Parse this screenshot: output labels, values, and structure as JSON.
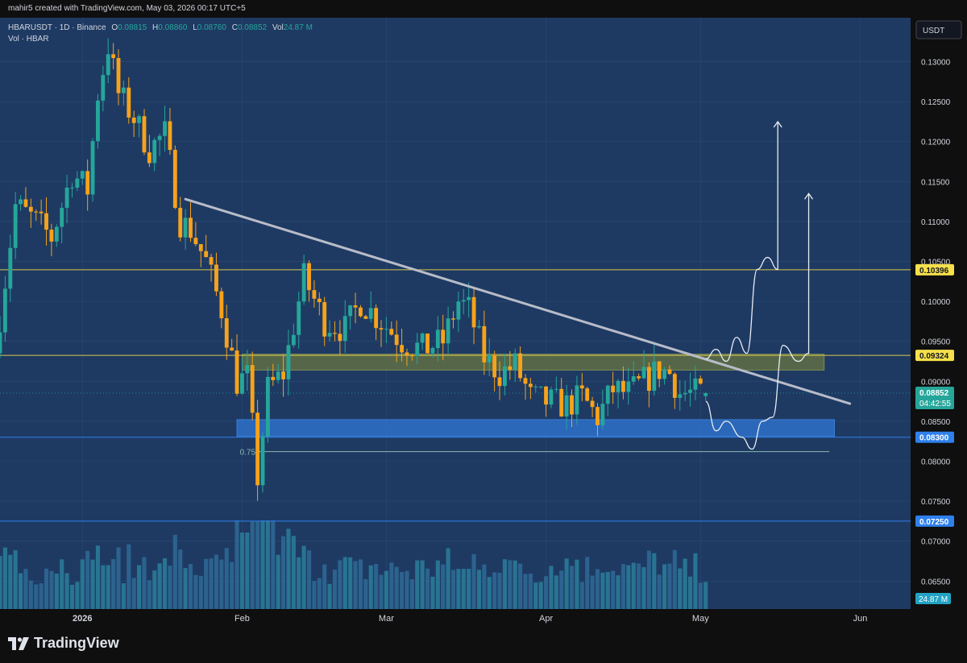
{
  "header": {
    "author_line": "mahir5 created with TradingView.com, May 03, 2026 00:17 UTC+5"
  },
  "legend": {
    "symbol": "HBARUSDT · 1D · Binance",
    "o_label": "O",
    "o_value": "0.08815",
    "h_label": "H",
    "h_value": "0.08860",
    "l_label": "L",
    "l_value": "0.08760",
    "c_label": "C",
    "c_value": "0.08852",
    "vol_label": "Vol",
    "vol_value": "24.87 M",
    "volume_title": "Vol · HBAR"
  },
  "currency_button": "USDT",
  "footer": {
    "brand": "TradingView"
  },
  "colors": {
    "background": "#1e3a63",
    "up": "#26a69a",
    "down": "#f7a21b",
    "axis_bg": "#0f0f0f",
    "yellow_line": "#d9c74a",
    "blue_line": "#2f80ed",
    "trendline": "#b8bcc8",
    "supply_zone": "#5f6f44",
    "demand_zone": "#2d6ec4"
  },
  "chart_data": {
    "type": "candlestick",
    "interval": "1D",
    "x_range": [
      "2025-12-16",
      "2026-06-10"
    ],
    "y_range": [
      0.0615,
      0.1355
    ],
    "x_ticks": [
      {
        "date": "2026-01-01",
        "label": "2026"
      },
      {
        "date": "2026-02-01",
        "label": "Feb"
      },
      {
        "date": "2026-03-01",
        "label": "Mar"
      },
      {
        "date": "2026-04-01",
        "label": "Apr"
      },
      {
        "date": "2026-05-01",
        "label": "May"
      },
      {
        "date": "2026-06-01",
        "label": "Jun"
      }
    ],
    "y_ticks": [
      "0.13000",
      "0.12500",
      "0.12000",
      "0.11500",
      "0.11000",
      "0.10500",
      "0.10000",
      "0.09500",
      "0.09000",
      "0.08500",
      "0.08000",
      "0.07500",
      "0.07000",
      "0.06500"
    ],
    "current_price": {
      "value": 0.08852,
      "label": "0.08852",
      "countdown": "04:42:55"
    },
    "volume_badge": "24.87 M",
    "horizontal_levels": [
      {
        "value": 0.10396,
        "label": "0.10396",
        "color": "yellow"
      },
      {
        "value": 0.09324,
        "label": "0.09324",
        "color": "yellow"
      },
      {
        "value": 0.083,
        "label": "0.08300",
        "color": "blue"
      },
      {
        "value": 0.0725,
        "label": "0.07250",
        "color": "blue"
      }
    ],
    "fib_level": {
      "label": "0.75",
      "value": 0.0812,
      "from": "2026-02-04",
      "to": "2026-05-26"
    },
    "zones": [
      {
        "name": "supply",
        "from": "2026-02-01",
        "to": "2026-05-25",
        "top": 0.0934,
        "bottom": 0.0914
      },
      {
        "name": "demand",
        "from": "2026-01-31",
        "to": "2026-05-27",
        "top": 0.0852,
        "bottom": 0.0831
      }
    ],
    "trendline": {
      "start": {
        "date": "2026-01-21",
        "price": 0.1128
      },
      "end": {
        "date": "2026-05-30",
        "price": 0.0872
      }
    },
    "projections": [
      {
        "name": "bullish-path",
        "points": [
          [
            "2026-05-02",
            0.0928
          ],
          [
            "2026-05-04",
            0.094
          ],
          [
            "2026-05-06",
            0.0925
          ],
          [
            "2026-05-08",
            0.0955
          ],
          [
            "2026-05-10",
            0.0935
          ],
          [
            "2026-05-12",
            0.104
          ],
          [
            "2026-05-14",
            0.1055
          ],
          [
            "2026-05-16",
            0.104
          ],
          [
            "2026-05-16",
            0.1225
          ]
        ]
      },
      {
        "name": "dip-then-rally-path",
        "points": [
          [
            "2026-05-02",
            0.0875
          ],
          [
            "2026-05-04",
            0.0838
          ],
          [
            "2026-05-06",
            0.085
          ],
          [
            "2026-05-09",
            0.083
          ],
          [
            "2026-05-11",
            0.0815
          ],
          [
            "2026-05-13",
            0.085
          ],
          [
            "2026-05-15",
            0.0855
          ],
          [
            "2026-05-17",
            0.0945
          ],
          [
            "2026-05-20",
            0.0925
          ],
          [
            "2026-05-22",
            0.0935
          ],
          [
            "2026-05-22",
            0.1135
          ]
        ]
      }
    ],
    "anchors": [
      [
        "2025-12-16",
        0.0935
      ],
      [
        "2025-12-20",
        0.112
      ],
      [
        "2025-12-24",
        0.11
      ],
      [
        "2025-12-27",
        0.108
      ],
      [
        "2025-12-31",
        0.116
      ],
      [
        "2026-01-03",
        0.114
      ],
      [
        "2026-01-05",
        0.126
      ],
      [
        "2026-01-07",
        0.132
      ],
      [
        "2026-01-09",
        0.126
      ],
      [
        "2026-01-12",
        0.123
      ],
      [
        "2026-01-15",
        0.119
      ],
      [
        "2026-01-18",
        0.121
      ],
      [
        "2026-01-21",
        0.11
      ],
      [
        "2026-01-23",
        0.109
      ],
      [
        "2026-01-26",
        0.105
      ],
      [
        "2026-01-29",
        0.099
      ],
      [
        "2026-02-01",
        0.09
      ],
      [
        "2026-02-03",
        0.0905
      ],
      [
        "2026-02-05",
        0.078
      ],
      [
        "2026-02-07",
        0.089
      ],
      [
        "2026-02-10",
        0.091
      ],
      [
        "2026-02-14",
        0.103
      ],
      [
        "2026-02-18",
        0.0975
      ],
      [
        "2026-02-22",
        0.0965
      ],
      [
        "2026-02-25",
        0.1
      ],
      [
        "2026-03-01",
        0.0975
      ],
      [
        "2026-03-05",
        0.095
      ],
      [
        "2026-03-09",
        0.094
      ],
      [
        "2026-03-13",
        0.095
      ],
      [
        "2026-03-16",
        0.1
      ],
      [
        "2026-03-18",
        0.099
      ],
      [
        "2026-03-21",
        0.093
      ],
      [
        "2026-03-24",
        0.091
      ],
      [
        "2026-03-27",
        0.092
      ],
      [
        "2026-03-30",
        0.088
      ],
      [
        "2026-04-02",
        0.0875
      ],
      [
        "2026-04-06",
        0.087
      ],
      [
        "2026-04-09",
        0.088
      ],
      [
        "2026-04-12",
        0.0855
      ],
      [
        "2026-04-15",
        0.089
      ],
      [
        "2026-04-18",
        0.0885
      ],
      [
        "2026-04-21",
        0.09
      ],
      [
        "2026-04-24",
        0.0915
      ],
      [
        "2026-04-26",
        0.091
      ],
      [
        "2026-04-28",
        0.0885
      ],
      [
        "2026-05-02",
        0.0885
      ]
    ],
    "volume_scale_max": 70
  }
}
